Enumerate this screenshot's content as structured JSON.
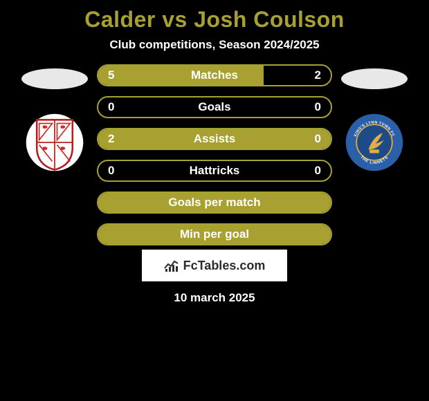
{
  "title": "Calder vs Josh Coulson",
  "subtitle": "Club competitions, Season 2024/2025",
  "date": "10 march 2025",
  "colors": {
    "accent": "#a8a132",
    "background": "#000000",
    "text": "#ffffff",
    "ellipse": "#e8e8e8",
    "watermark_bg": "#ffffff",
    "watermark_text": "#2b2b2b"
  },
  "watermark": "FcTables.com",
  "bars": [
    {
      "label": "Matches",
      "left": "5",
      "right": "2",
      "left_pct": 71,
      "border_color": "#a8a132",
      "has_values": true
    },
    {
      "label": "Goals",
      "left": "0",
      "right": "0",
      "left_pct": 0,
      "border_color": "#a8a132",
      "has_values": true,
      "empty": true
    },
    {
      "label": "Assists",
      "left": "2",
      "right": "0",
      "left_pct": 100,
      "border_color": "#a8a132",
      "has_values": true
    },
    {
      "label": "Hattricks",
      "left": "0",
      "right": "0",
      "left_pct": 0,
      "border_color": "#a8a132",
      "has_values": true,
      "empty": true
    },
    {
      "label": "Goals per match",
      "left": "",
      "right": "",
      "left_pct": 100,
      "border_color": "#a8a132",
      "has_values": false
    },
    {
      "label": "Min per goal",
      "left": "",
      "right": "",
      "left_pct": 100,
      "border_color": "#a8a132",
      "has_values": false
    }
  ],
  "left_crest": {
    "shield_bg": "#ffffff",
    "shield_outline": "#b02020",
    "lions": "#d02828"
  },
  "right_crest": {
    "outer": "#2b5fa8",
    "inner": "#1f4a88",
    "gold": "#e0b040",
    "top_text": "KING'S LYNN TOWN FC",
    "bottom_text": "THE LINNETS"
  }
}
